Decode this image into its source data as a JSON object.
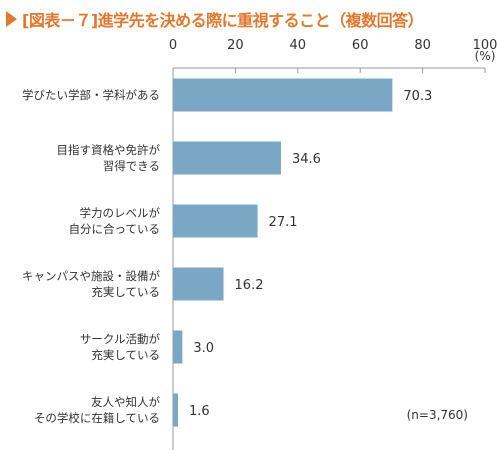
{
  "title": "[図表－７]進学先を決める際に重視すること（複数回答）",
  "colors": {
    "accent": "#e3782c",
    "bar": "#7aa8c4",
    "axis": "#9a9a9a"
  },
  "chart_data": {
    "type": "bar",
    "orientation": "horizontal",
    "unit": "(%)",
    "xlim": [
      0,
      100
    ],
    "ticks": [
      0,
      20,
      40,
      60,
      80,
      100
    ],
    "categories": [
      [
        "学びたい学部・学科がある"
      ],
      [
        "目指す資格や免許が",
        "習得できる"
      ],
      [
        "学力のレベルが",
        "自分に合っている"
      ],
      [
        "キャンパスや施設・設備が",
        "充実している"
      ],
      [
        "サークル活動が",
        "充実している"
      ],
      [
        "友人や知人が",
        "その学校に在籍している"
      ]
    ],
    "values": [
      70.3,
      34.6,
      27.1,
      16.2,
      3.0,
      1.6
    ],
    "value_labels": [
      "70.3",
      "34.6",
      "27.1",
      "16.2",
      "3.0",
      "1.6"
    ],
    "note": "(n=3,760)",
    "grid": false
  }
}
